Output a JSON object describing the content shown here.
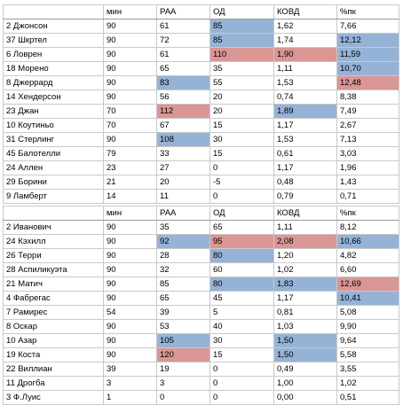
{
  "colors": {
    "highlight_blue": "#95b3d7",
    "highlight_red": "#da9694"
  },
  "table1": {
    "headers": [
      "",
      "мин",
      "РАА",
      "ОД",
      "КОВД",
      "%пк"
    ],
    "rows": [
      [
        "2 Джонсон",
        "90",
        "61",
        "85",
        "1,62",
        "7,66"
      ],
      [
        "37 Шкртел",
        "90",
        "72",
        "85",
        "1,74",
        "12,12"
      ],
      [
        "6 Ловрен",
        "90",
        "61",
        "110",
        "1,90",
        "11,59"
      ],
      [
        "18 Морено",
        "90",
        "65",
        "35",
        "1,11",
        "10,70"
      ],
      [
        "8 Джеррард",
        "90",
        "83",
        "55",
        "1,53",
        "12,48"
      ],
      [
        "14 Хендерсон",
        "90",
        "56",
        "20",
        "0,74",
        "8,38"
      ],
      [
        "23 Джан",
        "70",
        "112",
        "20",
        "1,89",
        "7,49"
      ],
      [
        "10 Коутиньо",
        "70",
        "67",
        "15",
        "1,17",
        "2,67"
      ],
      [
        "31 Стерлинг",
        "90",
        "108",
        "30",
        "1,53",
        "7,13"
      ],
      [
        "45 Балотелли",
        "79",
        "33",
        "15",
        "0,61",
        "3,03"
      ],
      [
        "24 Аллен",
        "23",
        "27",
        "0",
        "1,17",
        "1,96"
      ],
      [
        "29 Борини",
        "21",
        "20",
        "-5",
        "0,48",
        "1,43"
      ],
      [
        "9 Ламберт",
        "14",
        "11",
        "0",
        "0,79",
        "0,71"
      ]
    ],
    "highlights": {
      "0": {
        "3": "blue"
      },
      "1": {
        "3": "blue",
        "5": "blue"
      },
      "2": {
        "3": "red",
        "4": "red",
        "5": "blue"
      },
      "3": {
        "5": "blue"
      },
      "4": {
        "2": "blue",
        "5": "red"
      },
      "6": {
        "2": "red",
        "4": "blue"
      },
      "8": {
        "2": "blue"
      }
    }
  },
  "table2": {
    "headers": [
      "",
      "мин",
      "РАА",
      "ОД",
      "КОВД",
      "%пк"
    ],
    "rows": [
      [
        "2 Иванович",
        "90",
        "35",
        "65",
        "1,11",
        "8,12"
      ],
      [
        "24 Кэхилл",
        "90",
        "92",
        "95",
        "2,08",
        "10,66"
      ],
      [
        "26 Терри",
        "90",
        "28",
        "80",
        "1,20",
        "4,82"
      ],
      [
        "28 Аспиликуэта",
        "90",
        "32",
        "60",
        "1,02",
        "6,60"
      ],
      [
        "21 Матич",
        "90",
        "85",
        "80",
        "1,83",
        "12,69"
      ],
      [
        "4 Фабрегас",
        "90",
        "65",
        "45",
        "1,17",
        "10,41"
      ],
      [
        "7 Рамирес",
        "54",
        "39",
        "5",
        "0,81",
        "5,08"
      ],
      [
        "8 Оскар",
        "90",
        "53",
        "40",
        "1,03",
        "9,90"
      ],
      [
        "10 Азар",
        "90",
        "105",
        "30",
        "1,50",
        "9,64"
      ],
      [
        "19 Коста",
        "90",
        "120",
        "15",
        "1,50",
        "5,58"
      ],
      [
        "22 Виллиан",
        "39",
        "19",
        "0",
        "0,49",
        "3,55"
      ],
      [
        "11 Дрогба",
        "3",
        "3",
        "0",
        "1,00",
        "1,02"
      ],
      [
        "3 Ф.Луис",
        "1",
        "0",
        "0",
        "0,00",
        "0,51"
      ]
    ],
    "highlights": {
      "1": {
        "2": "blue",
        "3": "red",
        "4": "red",
        "5": "blue"
      },
      "2": {
        "3": "blue"
      },
      "4": {
        "3": "blue",
        "4": "blue",
        "5": "red"
      },
      "5": {
        "5": "blue"
      },
      "8": {
        "2": "blue",
        "4": "blue"
      },
      "9": {
        "2": "red",
        "4": "blue"
      }
    }
  }
}
